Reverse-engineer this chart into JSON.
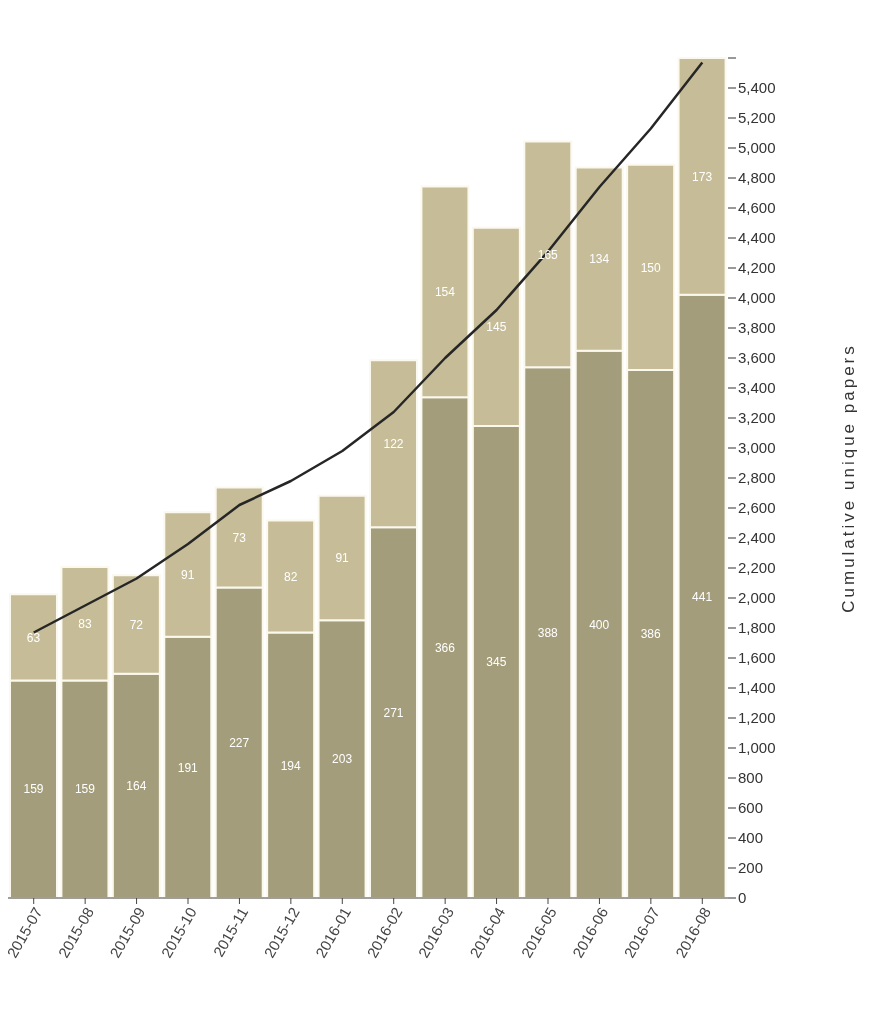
{
  "chart_data": {
    "type": "bar",
    "stacked": true,
    "y2label": "Cumulative unique papers",
    "categories": [
      "2015-07",
      "2015-08",
      "2015-09",
      "2015-10",
      "2015-11",
      "2015-12",
      "2016-01",
      "2016-02",
      "2016-03",
      "2016-04",
      "2016-05",
      "2016-06",
      "2016-07",
      "2016-08"
    ],
    "series": [
      {
        "color": "#a39d7b",
        "values": [
          159,
          159,
          164,
          191,
          227,
          194,
          203,
          271,
          366,
          345,
          388,
          400,
          386,
          441
        ],
        "value_labels": [
          "159",
          "159",
          "164",
          "191",
          "227",
          "194",
          "203",
          "271",
          "366",
          "345",
          "388",
          "400",
          "386",
          "441"
        ]
      },
      {
        "color": "#c6bd98",
        "values": [
          63,
          83,
          72,
          91,
          73,
          82,
          91,
          122,
          154,
          145,
          165,
          134,
          150,
          173
        ],
        "value_labels": [
          "63",
          "83",
          "72",
          "91",
          "73",
          "82",
          "91",
          "122",
          "154",
          "145",
          "165",
          "134",
          "150",
          "173"
        ]
      },
      {
        "type": "line",
        "axis": "y2",
        "color": "#262626",
        "values": [
          1770,
          1950,
          2130,
          2360,
          2620,
          2780,
          2980,
          3240,
          3600,
          3920,
          4310,
          4740,
          5130,
          5570
        ]
      }
    ],
    "y2lim": [
      0,
      5600
    ],
    "y2ticks": [
      0,
      200,
      400,
      600,
      800,
      {
        "value": 1000,
        "label": "1,000"
      },
      {
        "value": 1200,
        "label": "1,200"
      },
      {
        "value": 1400,
        "label": "1,400"
      },
      {
        "value": 1600,
        "label": "1,600"
      },
      {
        "value": 1800,
        "label": "1,800"
      },
      {
        "value": 2000,
        "label": "2,000"
      },
      {
        "value": 2200,
        "label": "2,200"
      },
      {
        "value": 2400,
        "label": "2,400"
      },
      {
        "value": 2600,
        "label": "2,600"
      },
      {
        "value": 2800,
        "label": "2,800"
      },
      {
        "value": 3000,
        "label": "3,000"
      },
      {
        "value": 3200,
        "label": "3,200"
      },
      {
        "value": 3400,
        "label": "3,400"
      },
      {
        "value": 3600,
        "label": "3,600"
      },
      {
        "value": 3800,
        "label": "3,800"
      },
      {
        "value": 4000,
        "label": "4,000"
      },
      {
        "value": 4200,
        "label": "4,200"
      },
      {
        "value": 4400,
        "label": "4,400"
      },
      {
        "value": 4600,
        "label": "4,600"
      },
      {
        "value": 4800,
        "label": "4,800"
      },
      {
        "value": 5000,
        "label": "5,000"
      },
      {
        "value": 5200,
        "label": "5,200"
      },
      {
        "value": 5400,
        "label": "5,400"
      },
      {
        "value": 5600,
        "label": null
      }
    ]
  }
}
